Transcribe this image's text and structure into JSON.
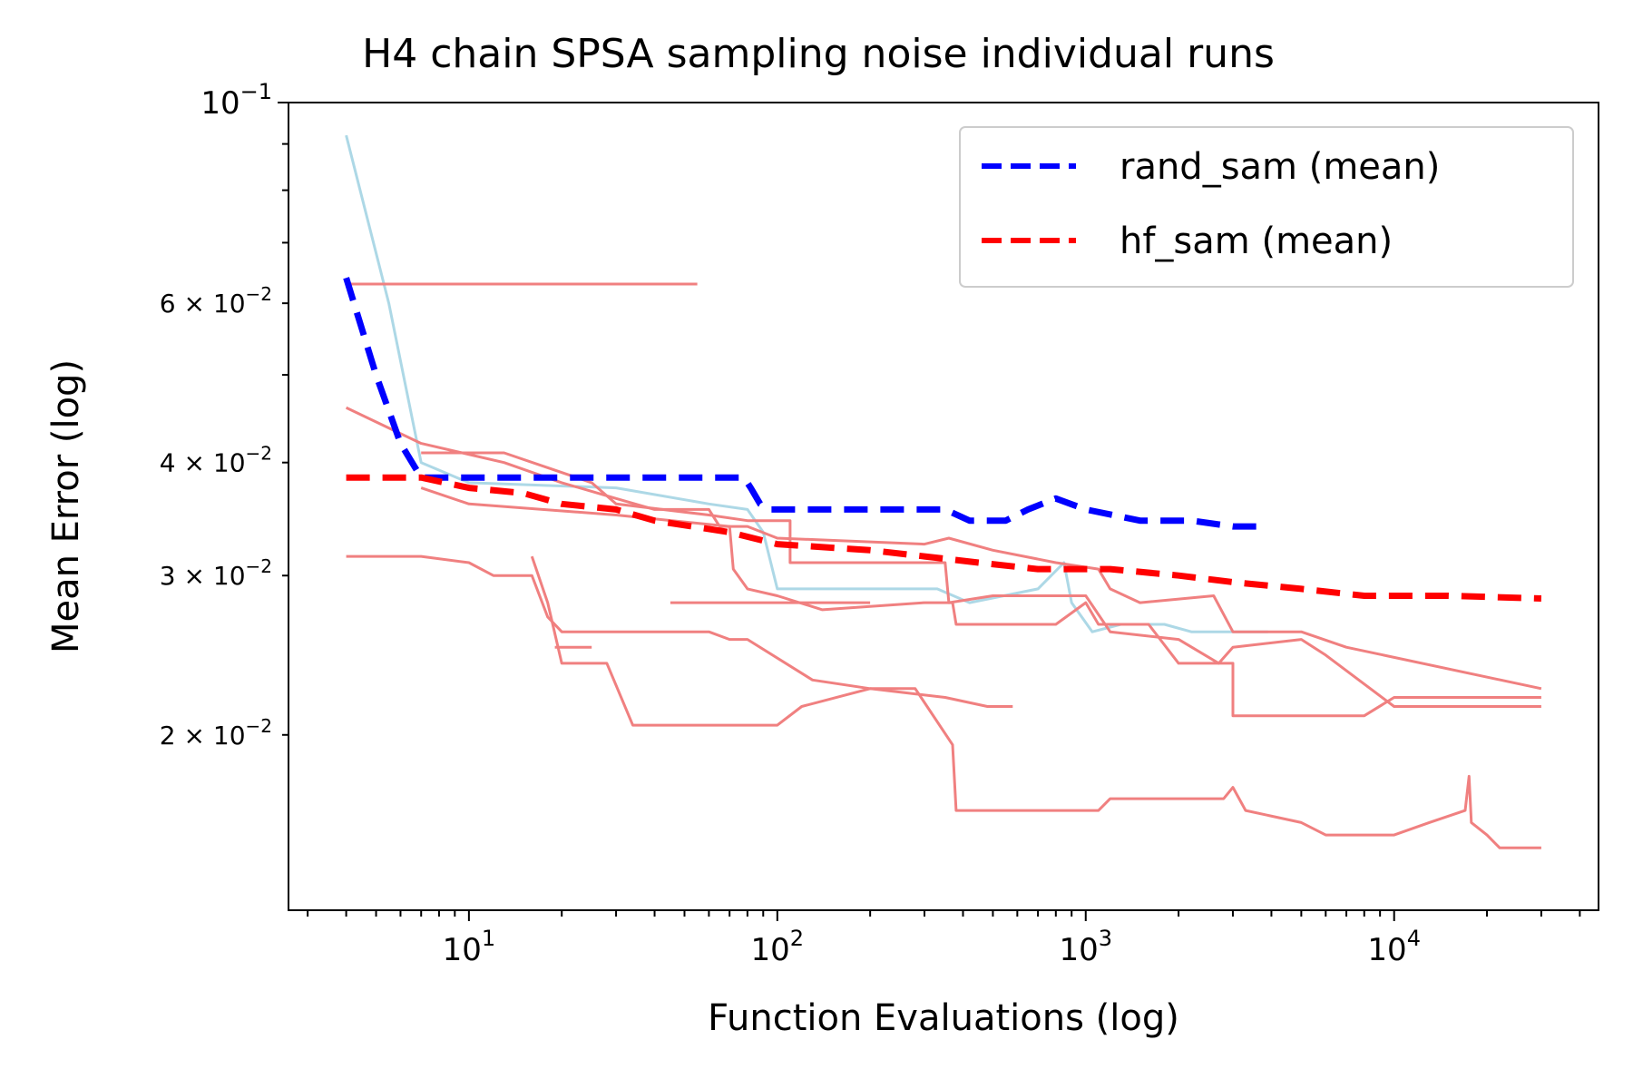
{
  "chart_data": {
    "type": "line",
    "title": "H4 chain SPSA sampling noise individual runs",
    "xlabel": "Function Evaluations (log)",
    "ylabel": "Mean Error (log)",
    "xscale": "log",
    "yscale": "log",
    "xlim": [
      2.6,
      46000
    ],
    "ylim": [
      0.0128,
      0.1
    ],
    "grid": false,
    "legend_position": "upper right",
    "x_ticks": [
      {
        "value": 10,
        "base": "10",
        "exp": "1"
      },
      {
        "value": 100,
        "base": "10",
        "exp": "2"
      },
      {
        "value": 1000,
        "base": "10",
        "exp": "3"
      },
      {
        "value": 10000,
        "base": "10",
        "exp": "4"
      }
    ],
    "y_ticks": [
      {
        "value": 0.1,
        "mant": "",
        "base": "10",
        "exp": "−1"
      },
      {
        "value": 0.06,
        "mant": "6 × ",
        "base": "10",
        "exp": "−2"
      },
      {
        "value": 0.04,
        "mant": "4 × ",
        "base": "10",
        "exp": "−2"
      },
      {
        "value": 0.03,
        "mant": "3 × ",
        "base": "10",
        "exp": "−2"
      },
      {
        "value": 0.02,
        "mant": "2 × ",
        "base": "10",
        "exp": "−2"
      }
    ],
    "colors": {
      "rand_mean": "#0000ff",
      "hf_mean": "#ff0000",
      "rand_run": "#add8e6",
      "hf_run": "#f08080"
    },
    "series": [
      {
        "name": "rand_sam (mean)",
        "color": "#0000ff",
        "style": "dashed",
        "points": [
          [
            4,
            0.064
          ],
          [
            5,
            0.05
          ],
          [
            6,
            0.042
          ],
          [
            7,
            0.0385
          ],
          [
            20,
            0.0385
          ],
          [
            50,
            0.0385
          ],
          [
            78,
            0.0385
          ],
          [
            82,
            0.0375
          ],
          [
            88,
            0.036
          ],
          [
            95,
            0.0355
          ],
          [
            200,
            0.0355
          ],
          [
            350,
            0.0355
          ],
          [
            420,
            0.0345
          ],
          [
            550,
            0.0345
          ],
          [
            650,
            0.0355
          ],
          [
            800,
            0.0365
          ],
          [
            1000,
            0.0355
          ],
          [
            1500,
            0.0345
          ],
          [
            2200,
            0.0345
          ],
          [
            3000,
            0.034
          ],
          [
            3900,
            0.034
          ]
        ]
      },
      {
        "name": "hf_sam (mean)",
        "color": "#ff0000",
        "style": "dashed",
        "points": [
          [
            4,
            0.0385
          ],
          [
            7,
            0.0385
          ],
          [
            10,
            0.0375
          ],
          [
            15,
            0.037
          ],
          [
            20,
            0.036
          ],
          [
            30,
            0.0355
          ],
          [
            40,
            0.0345
          ],
          [
            70,
            0.0335
          ],
          [
            100,
            0.0325
          ],
          [
            200,
            0.032
          ],
          [
            300,
            0.0315
          ],
          [
            450,
            0.031
          ],
          [
            700,
            0.0305
          ],
          [
            1200,
            0.0305
          ],
          [
            2000,
            0.03
          ],
          [
            3000,
            0.0295
          ],
          [
            5000,
            0.029
          ],
          [
            8000,
            0.0285
          ],
          [
            15000,
            0.0285
          ],
          [
            30000,
            0.0283
          ]
        ]
      },
      {
        "role": "run",
        "color": "#add8e6",
        "points": [
          [
            4,
            0.092
          ],
          [
            5.5,
            0.06
          ],
          [
            7,
            0.04
          ],
          [
            10,
            0.038
          ],
          [
            30,
            0.0375
          ],
          [
            60,
            0.036
          ],
          [
            80,
            0.0355
          ],
          [
            90,
            0.0335
          ],
          [
            100,
            0.029
          ],
          [
            200,
            0.029
          ],
          [
            330,
            0.029
          ],
          [
            420,
            0.028
          ],
          [
            700,
            0.029
          ],
          [
            850,
            0.031
          ],
          [
            900,
            0.028
          ],
          [
            1050,
            0.026
          ],
          [
            1300,
            0.0265
          ],
          [
            1800,
            0.0265
          ],
          [
            2200,
            0.026
          ],
          [
            3000,
            0.026
          ],
          [
            3900,
            0.026
          ]
        ]
      },
      {
        "role": "run",
        "color": "#f08080",
        "points": [
          [
            4,
            0.063
          ],
          [
            55,
            0.063
          ]
        ]
      },
      {
        "role": "run",
        "color": "#f08080",
        "points": [
          [
            4,
            0.046
          ],
          [
            7,
            0.042
          ],
          [
            13,
            0.04
          ],
          [
            20,
            0.038
          ],
          [
            30,
            0.0365
          ],
          [
            40,
            0.0355
          ],
          [
            60,
            0.0355
          ],
          [
            65,
            0.034
          ],
          [
            80,
            0.034
          ],
          [
            100,
            0.033
          ],
          [
            300,
            0.0325
          ],
          [
            360,
            0.033
          ],
          [
            500,
            0.032
          ],
          [
            800,
            0.031
          ],
          [
            1100,
            0.0305
          ],
          [
            1200,
            0.029
          ],
          [
            1500,
            0.028
          ],
          [
            2600,
            0.0285
          ],
          [
            3000,
            0.026
          ],
          [
            5000,
            0.026
          ],
          [
            7000,
            0.025
          ],
          [
            30000,
            0.0225
          ]
        ]
      },
      {
        "role": "run",
        "color": "#f08080",
        "points": [
          [
            7,
            0.041
          ],
          [
            13,
            0.041
          ],
          [
            25,
            0.038
          ],
          [
            30,
            0.036
          ],
          [
            60,
            0.035
          ],
          [
            80,
            0.0345
          ],
          [
            110,
            0.0345
          ],
          [
            110,
            0.031
          ],
          [
            200,
            0.031
          ],
          [
            350,
            0.031
          ],
          [
            360,
            0.028
          ],
          [
            500,
            0.0285
          ],
          [
            1000,
            0.0285
          ],
          [
            1200,
            0.026
          ],
          [
            2000,
            0.0255
          ],
          [
            2700,
            0.024
          ],
          [
            3000,
            0.025
          ],
          [
            5000,
            0.0255
          ],
          [
            6000,
            0.0245
          ],
          [
            10000,
            0.0215
          ],
          [
            30000,
            0.0215
          ]
        ]
      },
      {
        "role": "run",
        "color": "#f08080",
        "points": [
          [
            7,
            0.0375
          ],
          [
            10,
            0.036
          ],
          [
            30,
            0.035
          ],
          [
            70,
            0.034
          ],
          [
            72,
            0.0305
          ],
          [
            80,
            0.029
          ],
          [
            100,
            0.0285
          ],
          [
            140,
            0.0275
          ],
          [
            300,
            0.028
          ],
          [
            370,
            0.028
          ],
          [
            380,
            0.0265
          ],
          [
            800,
            0.0265
          ],
          [
            1000,
            0.028
          ],
          [
            1100,
            0.0265
          ],
          [
            1600,
            0.0265
          ],
          [
            2000,
            0.024
          ],
          [
            3000,
            0.024
          ],
          [
            3000,
            0.021
          ],
          [
            8000,
            0.021
          ],
          [
            10000,
            0.022
          ],
          [
            30000,
            0.022
          ]
        ]
      },
      {
        "role": "run",
        "color": "#f08080",
        "points": [
          [
            4,
            0.0315
          ],
          [
            7,
            0.0315
          ],
          [
            10,
            0.031
          ],
          [
            12,
            0.03
          ],
          [
            16,
            0.03
          ],
          [
            18,
            0.027
          ],
          [
            20,
            0.026
          ],
          [
            60,
            0.026
          ],
          [
            70,
            0.0255
          ],
          [
            80,
            0.0255
          ],
          [
            130,
            0.023
          ],
          [
            200,
            0.0225
          ],
          [
            350,
            0.022
          ],
          [
            480,
            0.0215
          ],
          [
            580,
            0.0215
          ]
        ]
      },
      {
        "role": "run",
        "color": "#f08080",
        "points": [
          [
            16,
            0.0315
          ],
          [
            18,
            0.028
          ],
          [
            20,
            0.024
          ],
          [
            28,
            0.024
          ],
          [
            34,
            0.0205
          ],
          [
            100,
            0.0205
          ],
          [
            120,
            0.0215
          ],
          [
            200,
            0.0225
          ],
          [
            280,
            0.0225
          ],
          [
            370,
            0.0195
          ],
          [
            380,
            0.0165
          ],
          [
            800,
            0.0165
          ],
          [
            1100,
            0.0165
          ],
          [
            1200,
            0.017
          ],
          [
            2800,
            0.017
          ],
          [
            3000,
            0.0175
          ],
          [
            3300,
            0.0165
          ],
          [
            5000,
            0.016
          ],
          [
            6000,
            0.0155
          ],
          [
            10000,
            0.0155
          ],
          [
            13000,
            0.016
          ],
          [
            17000,
            0.0165
          ],
          [
            17500,
            0.018
          ],
          [
            17800,
            0.016
          ],
          [
            20000,
            0.0155
          ],
          [
            22000,
            0.015
          ],
          [
            30000,
            0.015
          ]
        ]
      },
      {
        "role": "run",
        "color": "#f08080",
        "points": [
          [
            45,
            0.028
          ],
          [
            200,
            0.028
          ]
        ]
      },
      {
        "role": "run",
        "color": "#f08080",
        "points": [
          [
            19,
            0.025
          ],
          [
            25,
            0.025
          ]
        ]
      }
    ]
  }
}
